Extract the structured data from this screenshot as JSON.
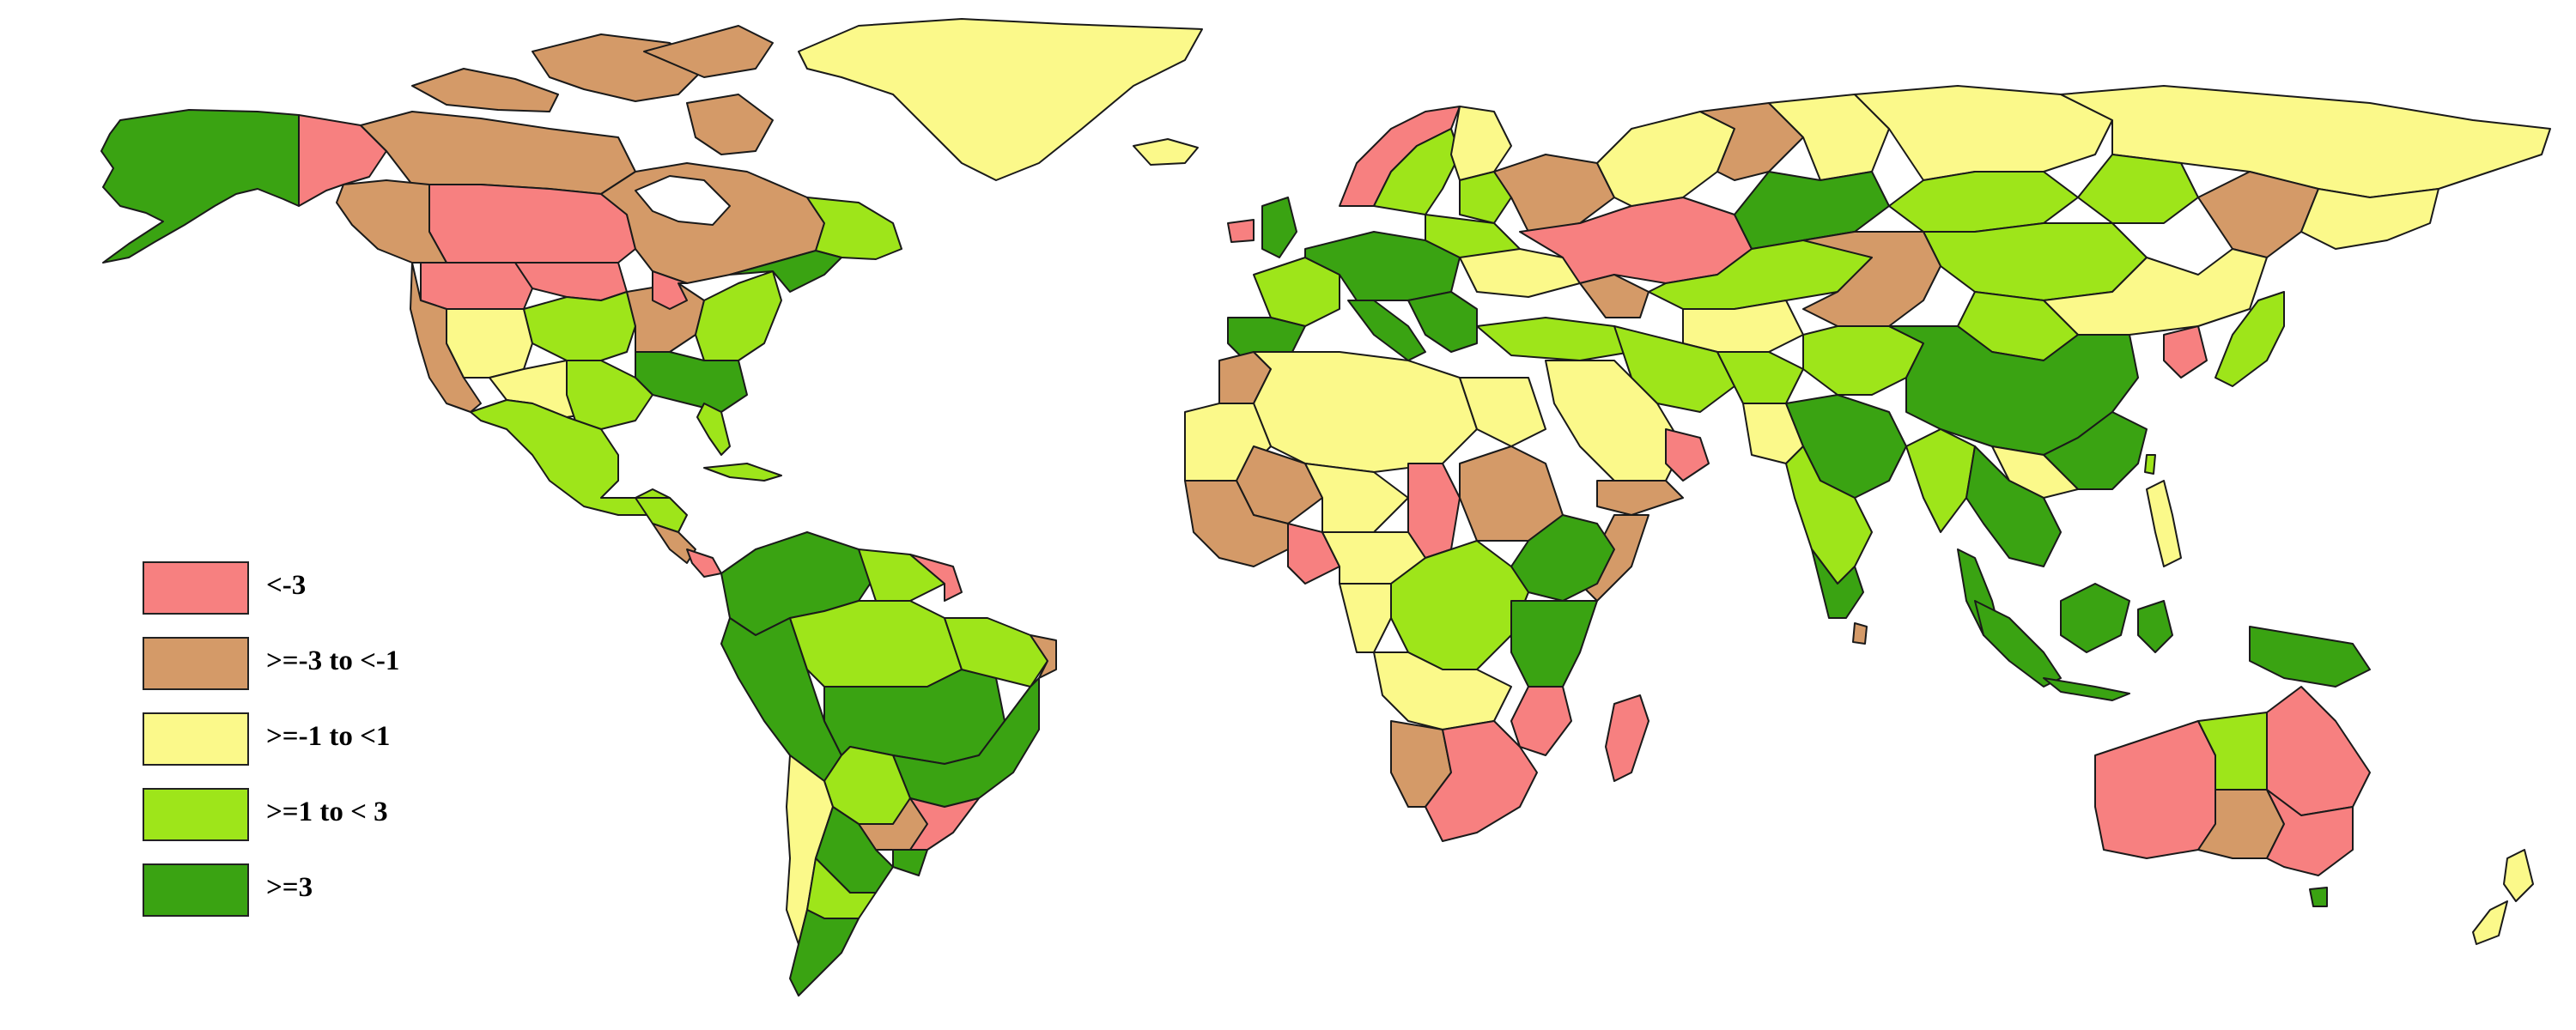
{
  "palette": {
    "lt_neg3": "#f78080",
    "neg3_to_neg1": "#d49a68",
    "neg1_to_1": "#fbf98a",
    "1_to_3": "#9ee51a",
    "ge3": "#3aa312",
    "border": "#1a1a1a",
    "water": "#ffffff"
  },
  "legend": {
    "items": [
      {
        "label": "<-3",
        "color": "#f78080"
      },
      {
        "label": ">=-3 to <-1",
        "color": "#d49a68"
      },
      {
        "label": ">=-1 to <1",
        "color": "#fbf98a"
      },
      {
        "label": ">=1 to < 3",
        "color": "#9ee51a"
      },
      {
        "label": ">=3",
        "color": "#3aa312"
      }
    ]
  }
}
